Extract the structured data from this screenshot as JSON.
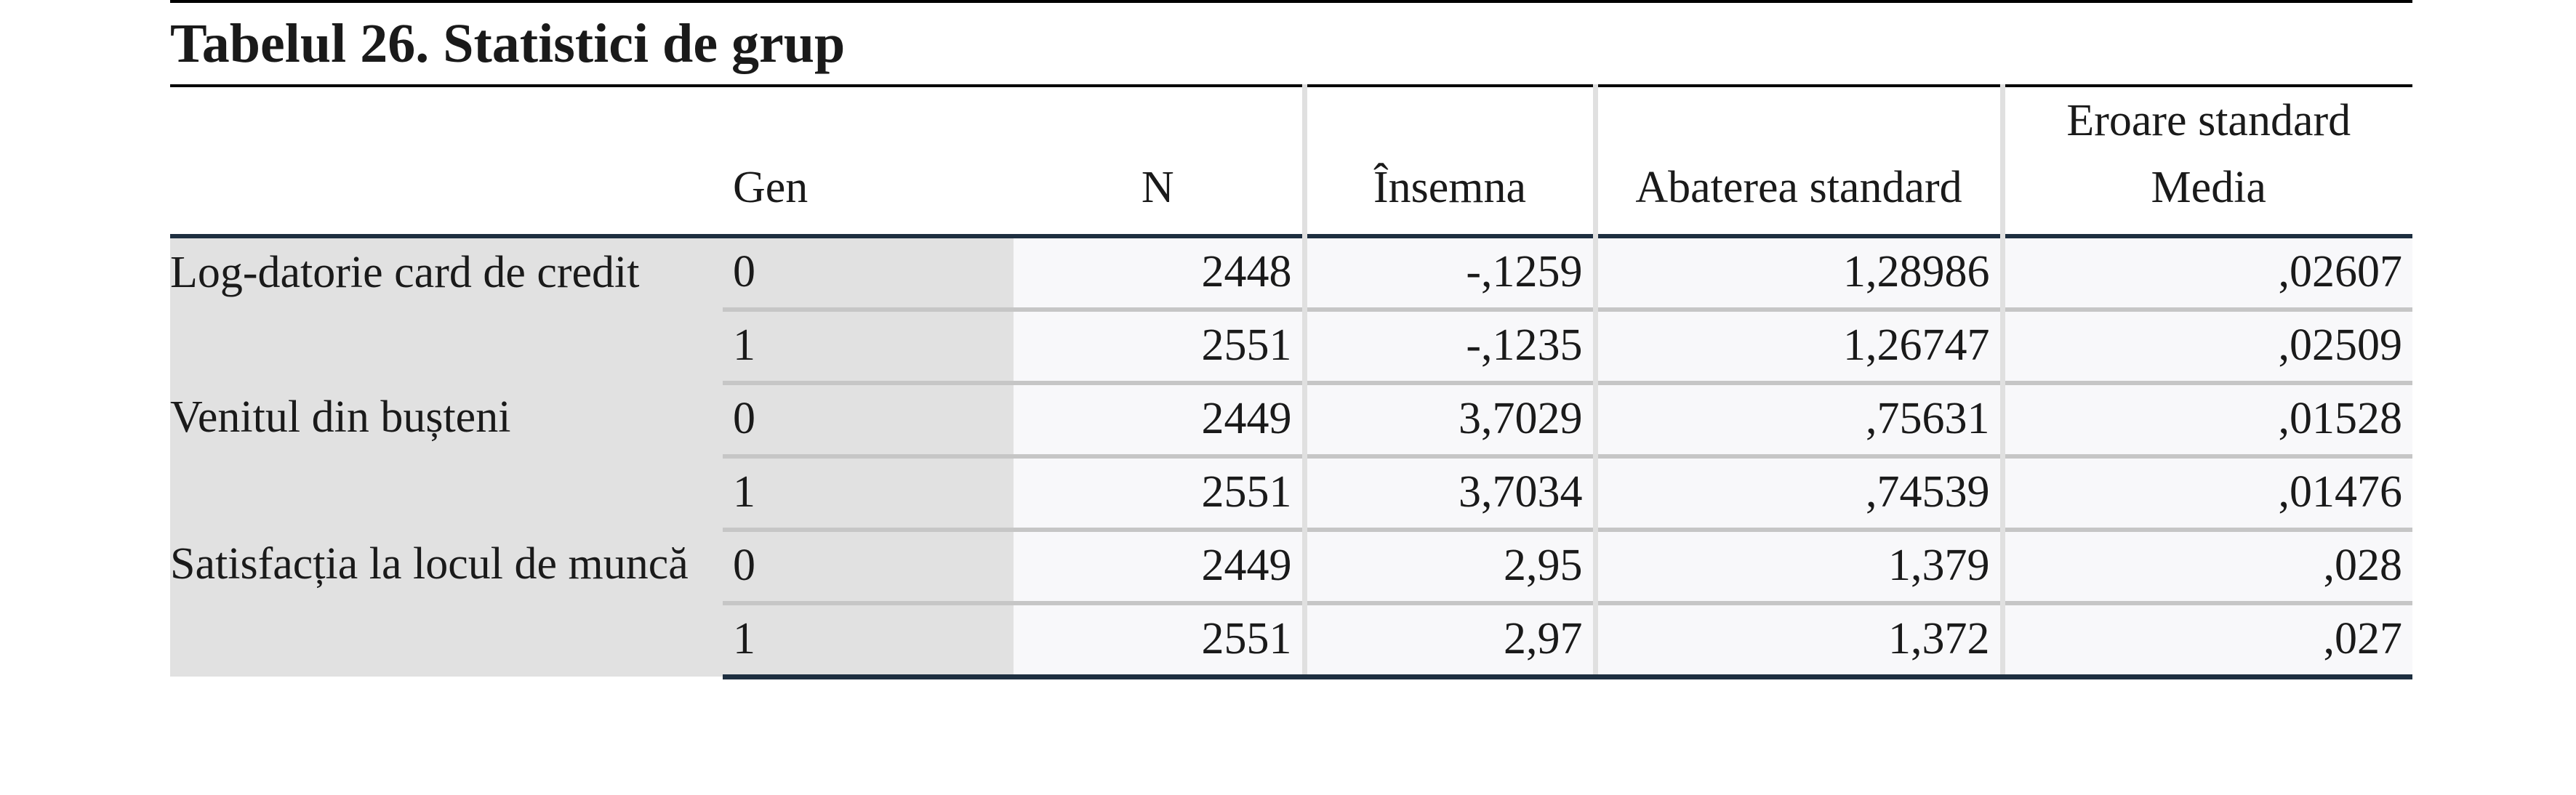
{
  "title": "Tabelul 26. Statistici de grup",
  "headers": {
    "gen": "Gen",
    "n": "N",
    "mean": "Însemna",
    "sd": "Abaterea standard",
    "se_line1": "Eroare standard",
    "se_line2": "Media"
  },
  "groups": [
    {
      "label": "Log-datorie card de credit",
      "rows": [
        {
          "gen": "0",
          "n": "2448",
          "mean": "-,1259",
          "sd": "1,28986",
          "se": ",02607"
        },
        {
          "gen": "1",
          "n": "2551",
          "mean": "-,1235",
          "sd": "1,26747",
          "se": ",02509"
        }
      ]
    },
    {
      "label": "Venitul din bușteni",
      "rows": [
        {
          "gen": "0",
          "n": "2449",
          "mean": "3,7029",
          "sd": ",75631",
          "se": ",01528"
        },
        {
          "gen": "1",
          "n": "2551",
          "mean": "3,7034",
          "sd": ",74539",
          "se": ",01476"
        }
      ]
    },
    {
      "label": "Satisfacția la locul de muncă",
      "rows": [
        {
          "gen": "0",
          "n": "2449",
          "mean": "2,95",
          "sd": "1,379",
          "se": ",028"
        },
        {
          "gen": "1",
          "n": "2551",
          "mean": "2,97",
          "sd": "1,372",
          "se": ",027"
        }
      ]
    }
  ]
}
